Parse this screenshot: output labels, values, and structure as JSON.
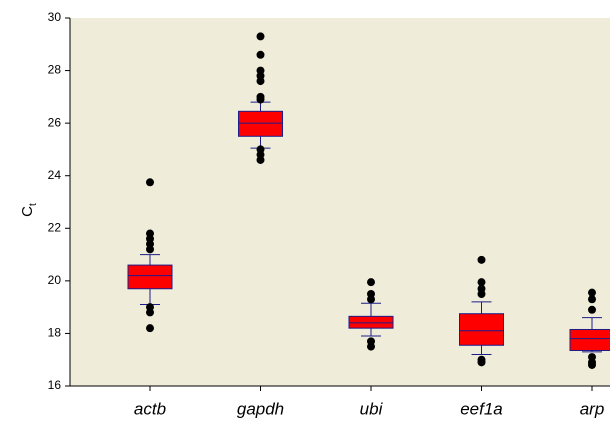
{
  "chart_data": {
    "type": "box",
    "y_label": {
      "main": "C",
      "subscript": "t"
    },
    "categories": [
      "actb",
      "gapdh",
      "ubi",
      "eef1a",
      "arp"
    ],
    "boxes": [
      {
        "whisker_low": 19.1,
        "q1": 19.7,
        "median": 20.2,
        "q3": 20.6,
        "whisker_high": 21.0,
        "outliers": [
          23.75,
          21.8,
          21.6,
          21.4,
          21.2,
          19.0,
          18.8,
          18.2
        ]
      },
      {
        "whisker_low": 25.05,
        "q1": 25.5,
        "median": 26.0,
        "q3": 26.45,
        "whisker_high": 26.8,
        "outliers": [
          29.3,
          28.6,
          28.0,
          27.8,
          27.6,
          27.0,
          26.9,
          25.0,
          24.8,
          24.6
        ]
      },
      {
        "whisker_low": 17.9,
        "q1": 18.2,
        "median": 18.4,
        "q3": 18.65,
        "whisker_high": 19.15,
        "outliers": [
          19.95,
          19.5,
          19.3,
          17.7,
          17.5
        ]
      },
      {
        "whisker_low": 17.2,
        "q1": 17.55,
        "median": 18.1,
        "q3": 18.75,
        "whisker_high": 19.2,
        "outliers": [
          20.8,
          19.95,
          19.7,
          19.5,
          17.0,
          16.9
        ]
      },
      {
        "whisker_low": 17.3,
        "q1": 17.35,
        "median": 17.8,
        "q3": 18.15,
        "whisker_high": 18.6,
        "outliers": [
          19.55,
          19.3,
          18.9,
          17.1,
          16.9,
          16.8
        ]
      }
    ],
    "box_color": "#ff0000",
    "line_color": "#1c1c8a",
    "outlier_color": "#000000",
    "plot_background": "#efedd9",
    "ylim": [
      16,
      30
    ],
    "yticks": [
      16,
      18,
      20,
      22,
      24,
      26,
      28,
      30
    ]
  }
}
